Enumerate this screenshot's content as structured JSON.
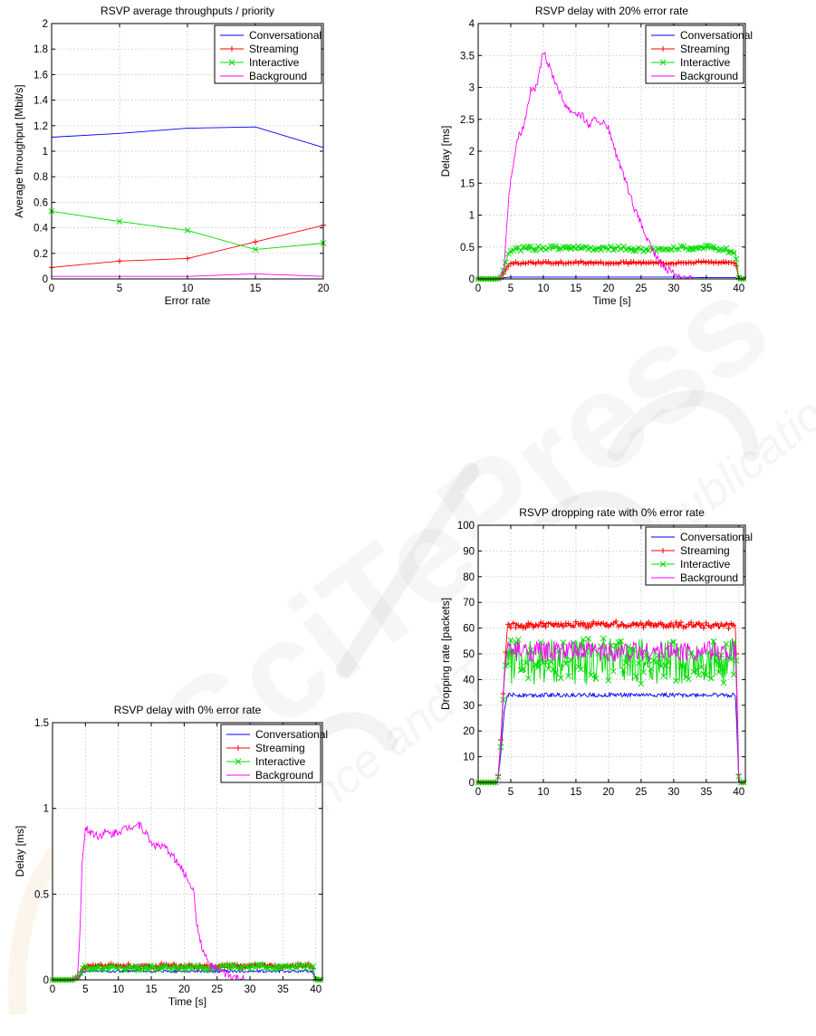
{
  "colors": {
    "Conversational": "#0000ff",
    "Streaming": "#ff0000",
    "Interactive": "#00dd00",
    "Background": "#ff00ff"
  },
  "watermark": {
    "brand": "SciTePress",
    "tagline": "Science and Technology Publications"
  },
  "chart_data": [
    {
      "id": "chart1",
      "type": "line",
      "title": "RSVP average throughputs / priority",
      "xlabel": "Error rate",
      "ylabel": "Average throughput [Mbit/s]",
      "xlim": [
        0,
        20
      ],
      "ylim": [
        0,
        2
      ],
      "xticks": [
        0,
        5,
        10,
        15,
        20
      ],
      "yticks": [
        0,
        0.2,
        0.4,
        0.6,
        0.8,
        1,
        1.2,
        1.4,
        1.6,
        1.8,
        2
      ],
      "xtick_labels": [
        "0",
        "5",
        "10",
        "15",
        "20"
      ],
      "ytick_labels": [
        "0",
        "0.2",
        "0.4",
        "0.6",
        "0.8",
        "1",
        "1.2",
        "1.4",
        "1.6",
        "1.8",
        "2"
      ],
      "grid": true,
      "legend": "top-right",
      "x": [
        0,
        5,
        10,
        15,
        20
      ],
      "series": [
        {
          "name": "Conversational",
          "marker": "none",
          "values": [
            1.11,
            1.14,
            1.18,
            1.19,
            1.03
          ]
        },
        {
          "name": "Streaming",
          "marker": "plus",
          "values": [
            0.09,
            0.14,
            0.16,
            0.29,
            0.42
          ]
        },
        {
          "name": "Interactive",
          "marker": "x",
          "values": [
            0.53,
            0.45,
            0.38,
            0.23,
            0.28
          ]
        },
        {
          "name": "Background",
          "marker": "none",
          "values": [
            0.02,
            0.02,
            0.02,
            0.04,
            0.02
          ]
        }
      ]
    },
    {
      "id": "chart2",
      "type": "line",
      "title": "RSVP delay with 20% error rate",
      "xlabel": "Time [s]",
      "ylabel": "Delay [ms]",
      "xlim": [
        0,
        41
      ],
      "ylim": [
        0,
        4
      ],
      "xticks": [
        0,
        5,
        10,
        15,
        20,
        25,
        30,
        35,
        40
      ],
      "yticks": [
        0,
        0.5,
        1,
        1.5,
        2,
        2.5,
        3,
        3.5,
        4
      ],
      "xtick_labels": [
        "0",
        "5",
        "10",
        "15",
        "20",
        "25",
        "30",
        "35",
        "40"
      ],
      "ytick_labels": [
        "0",
        "0.5",
        "1",
        "1.5",
        "2",
        "2.5",
        "3",
        "3.5",
        "4"
      ],
      "grid": true,
      "legend": "top-right",
      "series": [
        {
          "name": "Conversational",
          "marker": "none",
          "x": [
            0,
            3,
            4,
            5,
            10,
            20,
            30,
            35,
            39.5,
            40,
            41
          ],
          "values": [
            0,
            0,
            0.02,
            0.03,
            0.03,
            0.03,
            0.03,
            0.02,
            0.02,
            0,
            0
          ]
        },
        {
          "name": "Streaming",
          "marker": "plus",
          "x": [
            0,
            3,
            3.5,
            4,
            4.5,
            5,
            10,
            15,
            20,
            25,
            30,
            35,
            39.5,
            40,
            41
          ],
          "values": [
            0,
            0,
            0.02,
            0.1,
            0.2,
            0.25,
            0.25,
            0.26,
            0.25,
            0.25,
            0.25,
            0.26,
            0.25,
            0,
            0
          ],
          "noise": 0.02
        },
        {
          "name": "Interactive",
          "marker": "x",
          "x": [
            0,
            3,
            3.5,
            4,
            4.5,
            5,
            10,
            15,
            20,
            25,
            30,
            35,
            39.5,
            40,
            41
          ],
          "values": [
            0,
            0,
            0.03,
            0.18,
            0.35,
            0.47,
            0.48,
            0.48,
            0.49,
            0.46,
            0.48,
            0.5,
            0.42,
            0,
            0
          ],
          "noise": 0.035
        },
        {
          "name": "Background",
          "marker": "none",
          "x": [
            0,
            3,
            3.5,
            4,
            4.3,
            4.7,
            5.2,
            6,
            7,
            8,
            9,
            10,
            11,
            12,
            13,
            14,
            15,
            16,
            17,
            18,
            19,
            20,
            21,
            22,
            23,
            24,
            25,
            26,
            27,
            28,
            29,
            30,
            31,
            32,
            33,
            40,
            41
          ],
          "values": [
            0,
            0,
            0.05,
            0.2,
            0.7,
            1.3,
            1.7,
            2.2,
            2.4,
            2.95,
            3.0,
            3.55,
            3.3,
            3.05,
            2.8,
            2.65,
            2.6,
            2.55,
            2.4,
            2.5,
            2.45,
            2.35,
            2.0,
            1.7,
            1.4,
            1.1,
            0.85,
            0.6,
            0.4,
            0.25,
            0.15,
            0.1,
            0.04,
            0.01,
            0,
            0,
            0
          ],
          "noise": 0.06
        }
      ]
    },
    {
      "id": "chart3",
      "type": "line",
      "title": "RSVP dropping rate with 0% error rate",
      "xlabel": "Time [s]",
      "ylabel": "Dropping rate [packets]",
      "xlim": [
        0,
        41
      ],
      "ylim": [
        0,
        100
      ],
      "xticks": [
        0,
        5,
        10,
        15,
        20,
        25,
        30,
        35,
        40
      ],
      "yticks": [
        0,
        10,
        20,
        30,
        40,
        50,
        60,
        70,
        80,
        90,
        100
      ],
      "xtick_labels": [
        "0",
        "5",
        "10",
        "15",
        "20",
        "25",
        "30",
        "35",
        "40"
      ],
      "ytick_labels": [
        "0",
        "10",
        "20",
        "30",
        "40",
        "50",
        "60",
        "70",
        "80",
        "90",
        "100"
      ],
      "grid": true,
      "legend": "top-right",
      "series": [
        {
          "name": "Conversational",
          "marker": "none",
          "x": [
            0,
            3,
            3.5,
            4,
            4.5,
            5,
            20,
            39.5,
            40,
            41
          ],
          "values": [
            0,
            0,
            12,
            28,
            34,
            34,
            34,
            34,
            0,
            0
          ],
          "noise": 0.8
        },
        {
          "name": "Streaming",
          "marker": "plus",
          "x": [
            0,
            3,
            3.5,
            4,
            4.5,
            5,
            20,
            39.5,
            40,
            41
          ],
          "values": [
            0,
            0,
            18,
            42,
            61,
            61,
            61.5,
            61,
            0,
            0
          ],
          "noise": 1.2
        },
        {
          "name": "Interactive",
          "marker": "x",
          "x": [
            0,
            3,
            3.5,
            4,
            4.5,
            5,
            20,
            39.5,
            40,
            41
          ],
          "values": [
            0,
            0,
            15,
            40,
            52,
            47,
            47,
            47,
            0,
            0
          ],
          "noise": 9
        },
        {
          "name": "Background",
          "marker": "none",
          "x": [
            0,
            3,
            3.5,
            4,
            4.5,
            5,
            20,
            39.5,
            40,
            41
          ],
          "values": [
            0,
            0,
            16,
            42,
            53,
            51,
            51,
            51,
            0,
            0
          ],
          "noise": 4
        }
      ]
    },
    {
      "id": "chart4",
      "type": "line",
      "title": "RSVP delay with 0% error rate",
      "xlabel": "Time [s]",
      "ylabel": "Delay [ms]",
      "xlim": [
        0,
        41
      ],
      "ylim": [
        0,
        1.5
      ],
      "xticks": [
        0,
        5,
        10,
        15,
        20,
        25,
        30,
        35,
        40
      ],
      "yticks": [
        0,
        0.5,
        1,
        1.5
      ],
      "xtick_labels": [
        "0",
        "5",
        "10",
        "15",
        "20",
        "25",
        "30",
        "35",
        "40"
      ],
      "ytick_labels": [
        "0",
        "0.5",
        "1",
        "1.5"
      ],
      "grid": true,
      "legend": "top-right",
      "series": [
        {
          "name": "Conversational",
          "marker": "none",
          "x": [
            0,
            3,
            4,
            4.5,
            5,
            20,
            39.5,
            40,
            41
          ],
          "values": [
            0,
            0,
            0.01,
            0.04,
            0.05,
            0.05,
            0.05,
            0,
            0
          ],
          "noise": 0.008
        },
        {
          "name": "Streaming",
          "marker": "plus",
          "x": [
            0,
            3,
            4,
            4.5,
            5,
            20,
            39.5,
            40,
            41
          ],
          "values": [
            0,
            0,
            0.02,
            0.07,
            0.08,
            0.08,
            0.08,
            0,
            0
          ],
          "noise": 0.015
        },
        {
          "name": "Interactive",
          "marker": "x",
          "x": [
            0,
            3,
            4,
            4.5,
            5,
            20,
            39.5,
            40,
            41
          ],
          "values": [
            0,
            0,
            0.02,
            0.06,
            0.07,
            0.07,
            0.08,
            0,
            0
          ],
          "noise": 0.015
        },
        {
          "name": "Background",
          "marker": "none",
          "x": [
            0,
            3,
            3.8,
            4.2,
            4.5,
            5,
            6,
            7,
            8,
            9,
            10,
            11,
            12,
            13,
            14,
            15,
            16,
            17,
            18,
            19,
            20,
            21,
            21.5,
            22,
            23,
            24,
            25,
            26,
            27,
            28,
            29,
            30,
            40,
            41
          ],
          "values": [
            0,
            0,
            0.02,
            0.3,
            0.7,
            0.88,
            0.86,
            0.84,
            0.86,
            0.85,
            0.87,
            0.88,
            0.9,
            0.91,
            0.87,
            0.8,
            0.78,
            0.77,
            0.74,
            0.68,
            0.62,
            0.56,
            0.5,
            0.3,
            0.15,
            0.08,
            0.06,
            0.04,
            0.02,
            0.01,
            0,
            0,
            0,
            0
          ],
          "noise": 0.025
        }
      ]
    }
  ]
}
